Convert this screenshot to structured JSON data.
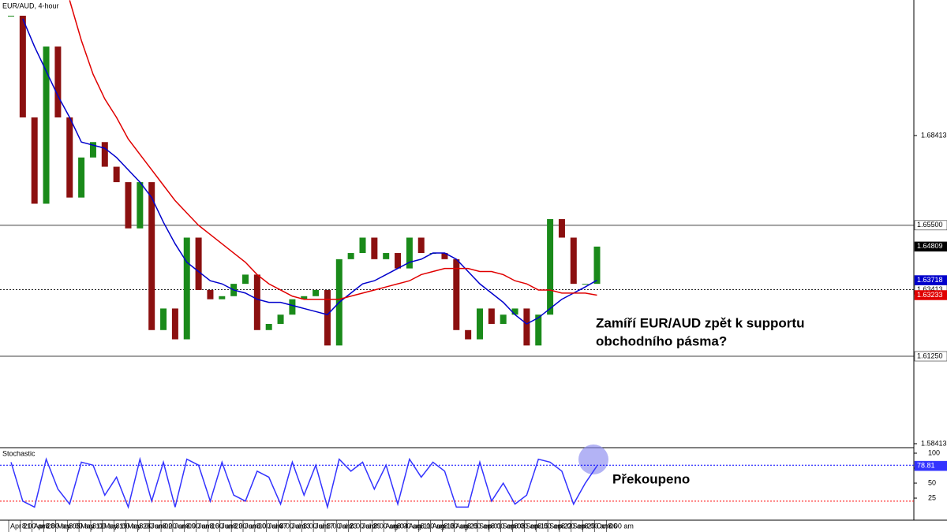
{
  "chart_data": [
    {
      "type": "candlestick",
      "title": "EUR/AUD, 4-hour",
      "categories": [
        "Apr 21",
        "8:00 am",
        "Apr 28",
        "8:00 am",
        "May 05",
        "8:00 am",
        "May 12",
        "8:00 am",
        "May 19",
        "8:00 am",
        "May 26",
        "8:00 am",
        "Jun 02",
        "8:00 am",
        "Jun 09",
        "8:00 am",
        "Jun 16",
        "8:00 am",
        "Jun 23",
        "8:00 am",
        "Jun 30",
        "8:00 am",
        "Jul 07",
        "8:00 am",
        "Jul 13",
        "8:00 am",
        "Jul 17",
        "8:00 am",
        "Jul 23",
        "8:00 am",
        "Jul 29",
        "8:00 am",
        "Aug 04",
        "8:00 am",
        "Aug 11",
        "8:00 am",
        "Aug 18",
        "8:00 am",
        "Aug 25",
        "8:00 am",
        "Sep 01",
        "8:00 am",
        "Sep 08",
        "8:00 am",
        "Sep 15",
        "8:00 am",
        "Sep 22",
        "8:00 am",
        "Sep 29",
        "8:00 am",
        "Oct 06",
        "8:00 am"
      ],
      "values": [
        1.723,
        1.69,
        1.662,
        1.713,
        1.69,
        1.664,
        1.677,
        1.682,
        1.674,
        1.669,
        1.654,
        1.669,
        1.621,
        1.628,
        1.618,
        1.651,
        1.634,
        1.631,
        1.632,
        1.636,
        1.639,
        1.621,
        1.623,
        1.626,
        1.631,
        1.632,
        1.634,
        1.616,
        1.644,
        1.646,
        1.651,
        1.644,
        1.646,
        1.641,
        1.651,
        1.646,
        1.646,
        1.644,
        1.621,
        1.618,
        1.628,
        1.623,
        1.626,
        1.628,
        1.616,
        1.626,
        1.657,
        1.651,
        1.636,
        1.636,
        1.64809,
        null
      ],
      "up_color": "#1a8a1a",
      "down_color": "#8b1010",
      "series": [
        {
          "color": "#0000cc",
          "values": [
            null,
            1.722,
            1.713,
            1.705,
            1.697,
            1.69,
            1.682,
            1.681,
            1.68,
            1.677,
            1.673,
            1.669,
            1.664,
            1.656,
            1.649,
            1.643,
            1.64,
            1.637,
            1.636,
            1.634,
            1.633,
            1.631,
            1.63,
            1.63,
            1.629,
            1.628,
            1.627,
            1.626,
            1.63,
            1.633,
            1.636,
            1.637,
            1.639,
            1.641,
            1.643,
            1.644,
            1.646,
            1.646,
            1.644,
            1.64,
            1.636,
            1.633,
            1.63,
            1.626,
            1.623,
            1.625,
            1.628,
            1.631,
            1.633,
            1.635,
            1.63718,
            null
          ]
        },
        {
          "color": "#e00000",
          "values": [
            null,
            null,
            null,
            null,
            null,
            1.728,
            1.715,
            1.704,
            1.696,
            1.69,
            1.683,
            1.678,
            1.673,
            1.668,
            1.663,
            1.659,
            1.655,
            1.652,
            1.649,
            1.646,
            1.643,
            1.639,
            1.636,
            1.634,
            1.632,
            1.631,
            1.631,
            1.631,
            1.631,
            1.632,
            1.633,
            1.634,
            1.635,
            1.636,
            1.637,
            1.639,
            1.64,
            1.641,
            1.641,
            1.641,
            1.64,
            1.64,
            1.639,
            1.637,
            1.636,
            1.634,
            1.634,
            1.633,
            1.633,
            1.633,
            1.63233,
            null
          ]
        }
      ],
      "ylim": [
        1.5831,
        1.7281
      ],
      "yticks": [
        1.68413,
        1.58413
      ],
      "levels": [
        {
          "value": 1.655,
          "label": "1.65500"
        },
        {
          "value": 1.63413,
          "style": "dotted"
        },
        {
          "value": 1.6125,
          "label": "1.61250"
        }
      ],
      "annotations": [
        "Zamíří EUR/AUD zpět k supportu",
        "obchodního pásma?"
      ]
    },
    {
      "type": "line",
      "title": "Stochastic",
      "series": [
        {
          "color": "#3333ff",
          "values": [
            85,
            20,
            10,
            90,
            40,
            15,
            85,
            80,
            30,
            60,
            10,
            90,
            20,
            85,
            10,
            90,
            80,
            20,
            85,
            30,
            20,
            70,
            60,
            15,
            85,
            30,
            80,
            10,
            90,
            70,
            85,
            40,
            80,
            15,
            90,
            60,
            85,
            70,
            10,
            10,
            85,
            20,
            50,
            15,
            30,
            90,
            85,
            70,
            15,
            50,
            78.81,
            null
          ]
        }
      ],
      "ylim": [
        -11.8,
        107.9
      ],
      "yticks": [
        100,
        75,
        50,
        25
      ],
      "levels": [
        {
          "value": 80,
          "color": "#0000ff"
        },
        {
          "value": 20,
          "color": "#ff0000"
        }
      ],
      "annotations": [
        "Překoupeno"
      ]
    }
  ]
}
